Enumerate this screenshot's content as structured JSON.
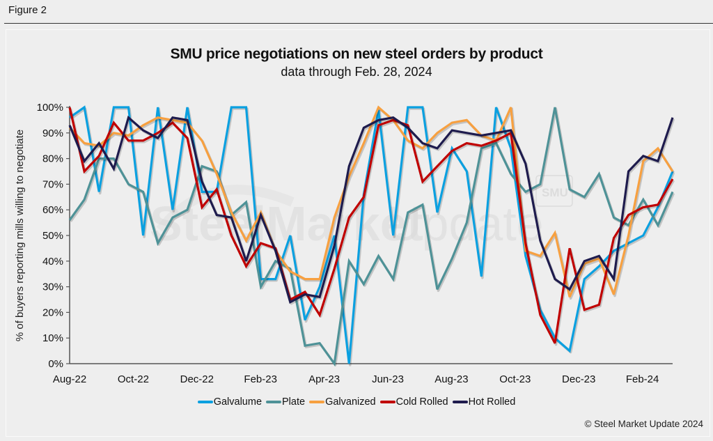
{
  "figure_label": "Figure 2",
  "footer": {
    "copyright": "© Steel Market Update 2024"
  },
  "watermark": {
    "bold": "SteelMarket",
    "light": "Update",
    "badge": "SMU"
  },
  "chart_data": {
    "type": "line",
    "title": "SMU price negotiations on new steel orders by product",
    "subtitle": "data through Feb. 28, 2024",
    "xlabel": "",
    "ylabel": "% of buyers reporting mills willing to negotiate",
    "ylim": [
      0,
      100
    ],
    "yticks": [
      "0%",
      "10%",
      "20%",
      "30%",
      "40%",
      "50%",
      "60%",
      "70%",
      "80%",
      "90%",
      "100%"
    ],
    "xtick_labels": [
      "Aug-22",
      "Oct-22",
      "Dec-22",
      "Feb-23",
      "Apr-23",
      "Jun-23",
      "Aug-23",
      "Oct-23",
      "Dec-23",
      "Feb-24"
    ],
    "x_frequency": "semi-monthly survey",
    "grid": false,
    "legend_position": "bottom",
    "series": [
      {
        "name": "Galvalume",
        "color": "#0aa0e0",
        "values": [
          96,
          100,
          67,
          100,
          100,
          50,
          100,
          60,
          100,
          67,
          67,
          100,
          100,
          33,
          33,
          50,
          17,
          30,
          50,
          0,
          66,
          99,
          50,
          100,
          100,
          59,
          84,
          75,
          34,
          100,
          84,
          42,
          21,
          10,
          5,
          33,
          38,
          44,
          47,
          50,
          61,
          75
        ]
      },
      {
        "name": "Plate",
        "color": "#4e9297",
        "values": [
          56,
          64,
          80,
          80,
          70,
          67,
          47,
          57,
          60,
          77,
          75,
          58,
          63,
          30,
          40,
          37,
          7,
          8,
          0,
          40,
          31,
          42,
          33,
          59,
          62,
          29,
          41,
          55,
          84,
          86,
          74,
          67,
          70,
          100,
          68,
          65,
          74,
          57,
          54,
          64,
          54,
          67
        ]
      },
      {
        "name": "Galvanized",
        "color": "#f7a040",
        "values": [
          92,
          86,
          85,
          90,
          89,
          93,
          96,
          95,
          94,
          87,
          74,
          59,
          48,
          59,
          44,
          36,
          33,
          33,
          57,
          73,
          86,
          100,
          95,
          87,
          84,
          90,
          94,
          95,
          89,
          87,
          100,
          44,
          42,
          51,
          26,
          39,
          41,
          27,
          50,
          79,
          84,
          75
        ]
      },
      {
        "name": "Cold Rolled",
        "color": "#c00000",
        "values": [
          100,
          75,
          81,
          94,
          87,
          87,
          90,
          94,
          88,
          61,
          68,
          50,
          38,
          47,
          45,
          25,
          28,
          19,
          37,
          57,
          65,
          93,
          95,
          93,
          71,
          77,
          83,
          86,
          85,
          87,
          90,
          47,
          19,
          8,
          45,
          21,
          23,
          49,
          58,
          61,
          62,
          72
        ]
      },
      {
        "name": "Hot Rolled",
        "color": "#1e1b4d",
        "values": [
          93,
          79,
          86,
          76,
          96,
          91,
          88,
          96,
          95,
          71,
          58,
          57,
          40,
          58,
          44,
          24,
          27,
          26,
          46,
          77,
          92,
          95,
          96,
          92,
          86,
          84,
          91,
          90,
          89,
          90,
          91,
          78,
          48,
          33,
          29,
          40,
          42,
          33,
          75,
          81,
          79,
          96
        ]
      }
    ]
  }
}
